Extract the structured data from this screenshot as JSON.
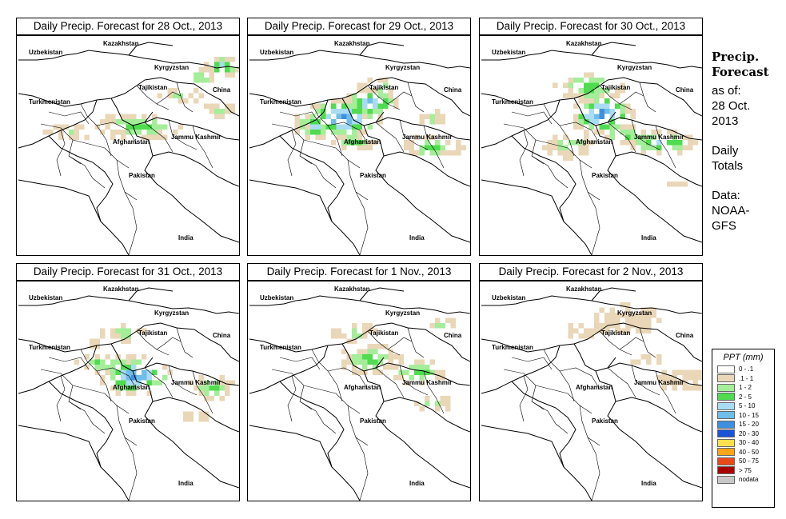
{
  "panels": [
    {
      "title": "Daily Precip. Forecast for  28 Oct., 2013",
      "day": 0
    },
    {
      "title": "Daily Precip. Forecast for  29 Oct., 2013",
      "day": 1
    },
    {
      "title": "Daily Precip. Forecast for  30 Oct., 2013",
      "day": 2
    },
    {
      "title": "Daily Precip. Forecast for  31 Oct., 2013",
      "day": 3
    },
    {
      "title": "Daily Precip. Forecast for  1 Nov., 2013",
      "day": 4
    },
    {
      "title": "Daily Precip. Forecast for  2 Nov., 2013",
      "day": 5
    }
  ],
  "map_labels": [
    "Kazakhstan",
    "Uzbekistan",
    "Kyrgyzstan",
    "Tajikistan",
    "Turkmenistan",
    "China",
    "Afghanistan",
    "Jammu Kashmir",
    "Pakistan",
    "India"
  ],
  "side": {
    "heading_line1": "Precip.",
    "heading_line2": "Forecast",
    "asof_line1": "as of:",
    "asof_line2": "28 Oct.",
    "asof_line3": "2013",
    "totals_line1": "Daily",
    "totals_line2": "Totals",
    "data_line1": "Data:",
    "data_line2": "NOAA-",
    "data_line3": "GFS"
  },
  "legend": {
    "title": "PPT (mm)",
    "items": [
      {
        "label": "0 - .1",
        "color": "#ffffff"
      },
      {
        "label": ".1 - 1",
        "color": "#e9d7b8"
      },
      {
        "label": "1 - 2",
        "color": "#a4ee9a"
      },
      {
        "label": "2 - 5",
        "color": "#4fdc4f"
      },
      {
        "label": "5 - 10",
        "color": "#a9dcf2"
      },
      {
        "label": "10 - 15",
        "color": "#6fbde9"
      },
      {
        "label": "15 - 20",
        "color": "#3f8fe0"
      },
      {
        "label": "20 - 30",
        "color": "#1a52d8"
      },
      {
        "label": "30 - 40",
        "color": "#ffe14d"
      },
      {
        "label": "40 - 50",
        "color": "#ffa51a"
      },
      {
        "label": "50 - 75",
        "color": "#e84a1a"
      },
      {
        "label": "> 75",
        "color": "#a80000"
      },
      {
        "label": "nodata",
        "color": "#c8c8c8"
      }
    ]
  }
}
